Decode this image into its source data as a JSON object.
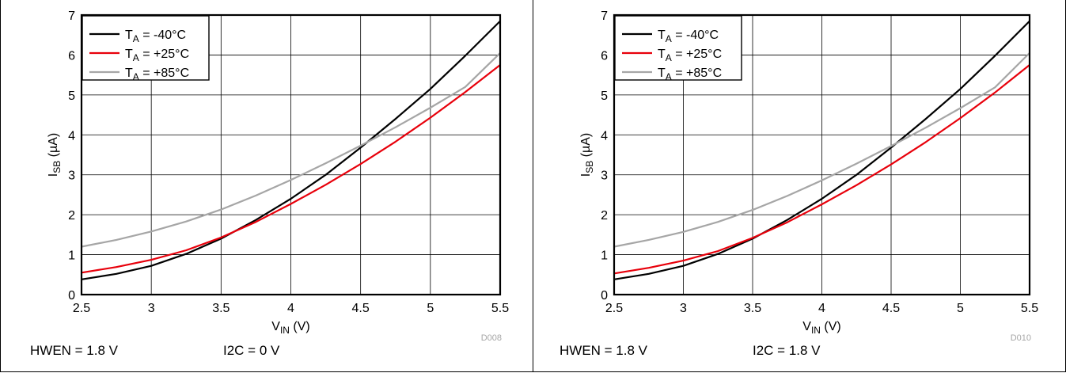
{
  "chart_data": [
    {
      "type": "line",
      "xlabel": "V",
      "xlabel_sub": "IN",
      "xlabel_unit": " (V)",
      "ylabel": "I",
      "ylabel_sub": "SB",
      "ylabel_unit": " (µA)",
      "xlim": [
        2.5,
        5.5
      ],
      "ylim": [
        0,
        7
      ],
      "xticks": [
        "2.5",
        "3",
        "3.5",
        "4",
        "4.5",
        "5",
        "5.5"
      ],
      "yticks": [
        "0",
        "1",
        "2",
        "3",
        "4",
        "5",
        "6",
        "7"
      ],
      "grid": true,
      "legend": "top-left",
      "code": "D008",
      "conditions": [
        "HWEN = 1.8 V",
        "I2C = 0 V"
      ],
      "series": [
        {
          "name": "T",
          "name_sub": "A",
          "name_rest": " = -40°C",
          "color": "#000000",
          "x": [
            2.5,
            2.75,
            3.0,
            3.25,
            3.5,
            3.75,
            4.0,
            4.25,
            4.5,
            4.75,
            5.0,
            5.25,
            5.5
          ],
          "y": [
            0.38,
            0.52,
            0.72,
            1.02,
            1.4,
            1.87,
            2.4,
            3.0,
            3.68,
            4.4,
            5.15,
            5.98,
            6.85
          ]
        },
        {
          "name": "T",
          "name_sub": "A",
          "name_rest": " = +25°C",
          "color": "#e8000b",
          "x": [
            2.5,
            2.75,
            3.0,
            3.25,
            3.5,
            3.75,
            4.0,
            4.25,
            4.5,
            4.75,
            5.0,
            5.25,
            5.5
          ],
          "y": [
            0.55,
            0.69,
            0.87,
            1.11,
            1.43,
            1.82,
            2.27,
            2.75,
            3.27,
            3.83,
            4.43,
            5.07,
            5.75
          ]
        },
        {
          "name": "T",
          "name_sub": "A",
          "name_rest": " = +85°C",
          "color": "#a6a6a6",
          "x": [
            2.5,
            2.75,
            3.0,
            3.25,
            3.5,
            3.75,
            4.0,
            4.25,
            4.5,
            4.75,
            5.0,
            5.25,
            5.5
          ],
          "y": [
            1.2,
            1.37,
            1.58,
            1.83,
            2.13,
            2.48,
            2.87,
            3.29,
            3.73,
            4.19,
            4.68,
            5.2,
            6.05
          ]
        }
      ]
    },
    {
      "type": "line",
      "xlabel": "V",
      "xlabel_sub": "IN",
      "xlabel_unit": " (V)",
      "ylabel": "I",
      "ylabel_sub": "SB",
      "ylabel_unit": " (µA)",
      "xlim": [
        2.5,
        5.5
      ],
      "ylim": [
        0,
        7
      ],
      "xticks": [
        "2.5",
        "3",
        "3.5",
        "4",
        "4.5",
        "5",
        "5.5"
      ],
      "yticks": [
        "0",
        "1",
        "2",
        "3",
        "4",
        "5",
        "6",
        "7"
      ],
      "grid": true,
      "legend": "top-left",
      "code": "D010",
      "conditions": [
        "HWEN = 1.8 V",
        "I2C = 1.8 V"
      ],
      "series": [
        {
          "name": "T",
          "name_sub": "A",
          "name_rest": " = -40°C",
          "color": "#000000",
          "x": [
            2.5,
            2.75,
            3.0,
            3.25,
            3.5,
            3.75,
            4.0,
            4.25,
            4.5,
            4.75,
            5.0,
            5.25,
            5.5
          ],
          "y": [
            0.38,
            0.52,
            0.72,
            1.02,
            1.4,
            1.87,
            2.4,
            3.0,
            3.68,
            4.4,
            5.15,
            5.98,
            6.85
          ]
        },
        {
          "name": "T",
          "name_sub": "A",
          "name_rest": " = +25°C",
          "color": "#e8000b",
          "x": [
            2.5,
            2.75,
            3.0,
            3.25,
            3.5,
            3.75,
            4.0,
            4.25,
            4.5,
            4.75,
            5.0,
            5.25,
            5.5
          ],
          "y": [
            0.53,
            0.67,
            0.85,
            1.09,
            1.42,
            1.81,
            2.26,
            2.74,
            3.26,
            3.82,
            4.42,
            5.06,
            5.75
          ]
        },
        {
          "name": "T",
          "name_sub": "A",
          "name_rest": " = +85°C",
          "color": "#a6a6a6",
          "x": [
            2.5,
            2.75,
            3.0,
            3.25,
            3.5,
            3.75,
            4.0,
            4.25,
            4.5,
            4.75,
            5.0,
            5.25,
            5.5
          ],
          "y": [
            1.2,
            1.37,
            1.57,
            1.82,
            2.12,
            2.47,
            2.86,
            3.28,
            3.72,
            4.18,
            4.67,
            5.19,
            6.05
          ]
        }
      ]
    }
  ]
}
